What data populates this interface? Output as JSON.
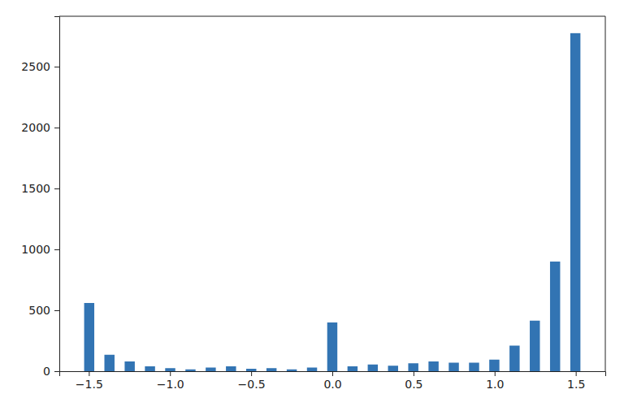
{
  "chart_data": {
    "type": "histogram",
    "bins": [
      -1.529,
      -1.4666,
      -1.4042,
      -1.3418,
      -1.2794,
      -1.217,
      -1.1546,
      -1.0922,
      -1.0298,
      -0.9674,
      -0.905,
      -0.8426,
      -0.7802,
      -0.7178,
      -0.6554,
      -0.593,
      -0.5306,
      -0.4682,
      -0.4058,
      -0.3434,
      -0.281,
      -0.2186,
      -0.1562,
      -0.0938,
      -0.0314,
      0.031,
      0.0934,
      0.1558,
      0.2182,
      0.2806,
      0.343,
      0.4054,
      0.4678,
      0.5302,
      0.5926,
      0.655,
      0.7174,
      0.7798,
      0.8422,
      0.9046,
      0.967,
      1.0294,
      1.0918,
      1.1542,
      1.2166,
      1.279,
      1.3414,
      1.4038,
      1.4662,
      1.5286
    ],
    "values": [
      560,
      0,
      135,
      0,
      80,
      0,
      40,
      0,
      25,
      0,
      15,
      0,
      30,
      0,
      40,
      0,
      20,
      0,
      25,
      0,
      15,
      0,
      30,
      0,
      400,
      0,
      40,
      0,
      55,
      0,
      45,
      0,
      65,
      0,
      80,
      0,
      70,
      0,
      70,
      0,
      95,
      0,
      210,
      0,
      415,
      0,
      900,
      0,
      2775
    ],
    "color": "#3274b3",
    "xlim": [
      -1.682,
      1.682
    ],
    "xticks": [
      {
        "value": -1.5,
        "label": "−1.5"
      },
      {
        "value": -1.0,
        "label": "−1.0"
      },
      {
        "value": -0.5,
        "label": "−0.5"
      },
      {
        "value": 0.0,
        "label": "0.0"
      },
      {
        "value": 0.5,
        "label": "0.5"
      },
      {
        "value": 1.0,
        "label": "1.0"
      },
      {
        "value": 1.5,
        "label": "1.5"
      }
    ],
    "ylim": [
      0,
      2914
    ],
    "yticks": [
      0,
      500,
      1000,
      1500,
      2000,
      2500
    ],
    "grid": false
  }
}
